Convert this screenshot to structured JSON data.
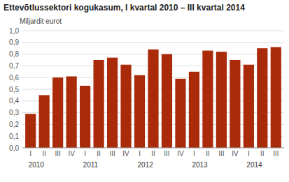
{
  "chart_data": {
    "type": "bar",
    "title": "Ettevõtlussektori kogukasum, I kvartal 2010 – III kvartal 2014",
    "ylabel": "Miljardit eurot",
    "color": "#aa2b0a",
    "categories": [
      "I",
      "II",
      "III",
      "IV",
      "I",
      "II",
      "III",
      "IV",
      "I",
      "II",
      "III",
      "IV",
      "I",
      "II",
      "III",
      "IV",
      "I",
      "II",
      "III"
    ],
    "values": [
      0.29,
      0.45,
      0.6,
      0.61,
      0.53,
      0.75,
      0.77,
      0.71,
      0.62,
      0.84,
      0.8,
      0.59,
      0.65,
      0.83,
      0.82,
      0.75,
      0.71,
      0.85,
      0.86
    ],
    "annotations": [
      {
        "text": "2010",
        "x": 0
      },
      {
        "text": "2011",
        "x": 4
      },
      {
        "text": "2012",
        "x": 8
      },
      {
        "text": "2013",
        "x": 12
      },
      {
        "text": "2014",
        "x": 16
      }
    ],
    "ylim": [
      0,
      1.0
    ],
    "yticks": [
      {
        "value": 0.0,
        "label": "0,0"
      },
      {
        "value": 0.1,
        "label": "0,1"
      },
      {
        "value": 0.2,
        "label": "0,2"
      },
      {
        "value": 0.3,
        "label": "0,3"
      },
      {
        "value": 0.4,
        "label": "0,4"
      },
      {
        "value": 0.5,
        "label": "0,5"
      },
      {
        "value": 0.6,
        "label": "0,6"
      },
      {
        "value": 0.7,
        "label": "0,7"
      },
      {
        "value": 0.8,
        "label": "0,8"
      },
      {
        "value": 0.9,
        "label": "0,9"
      },
      {
        "value": 1.0,
        "label": "1,0"
      }
    ],
    "grid": true
  }
}
